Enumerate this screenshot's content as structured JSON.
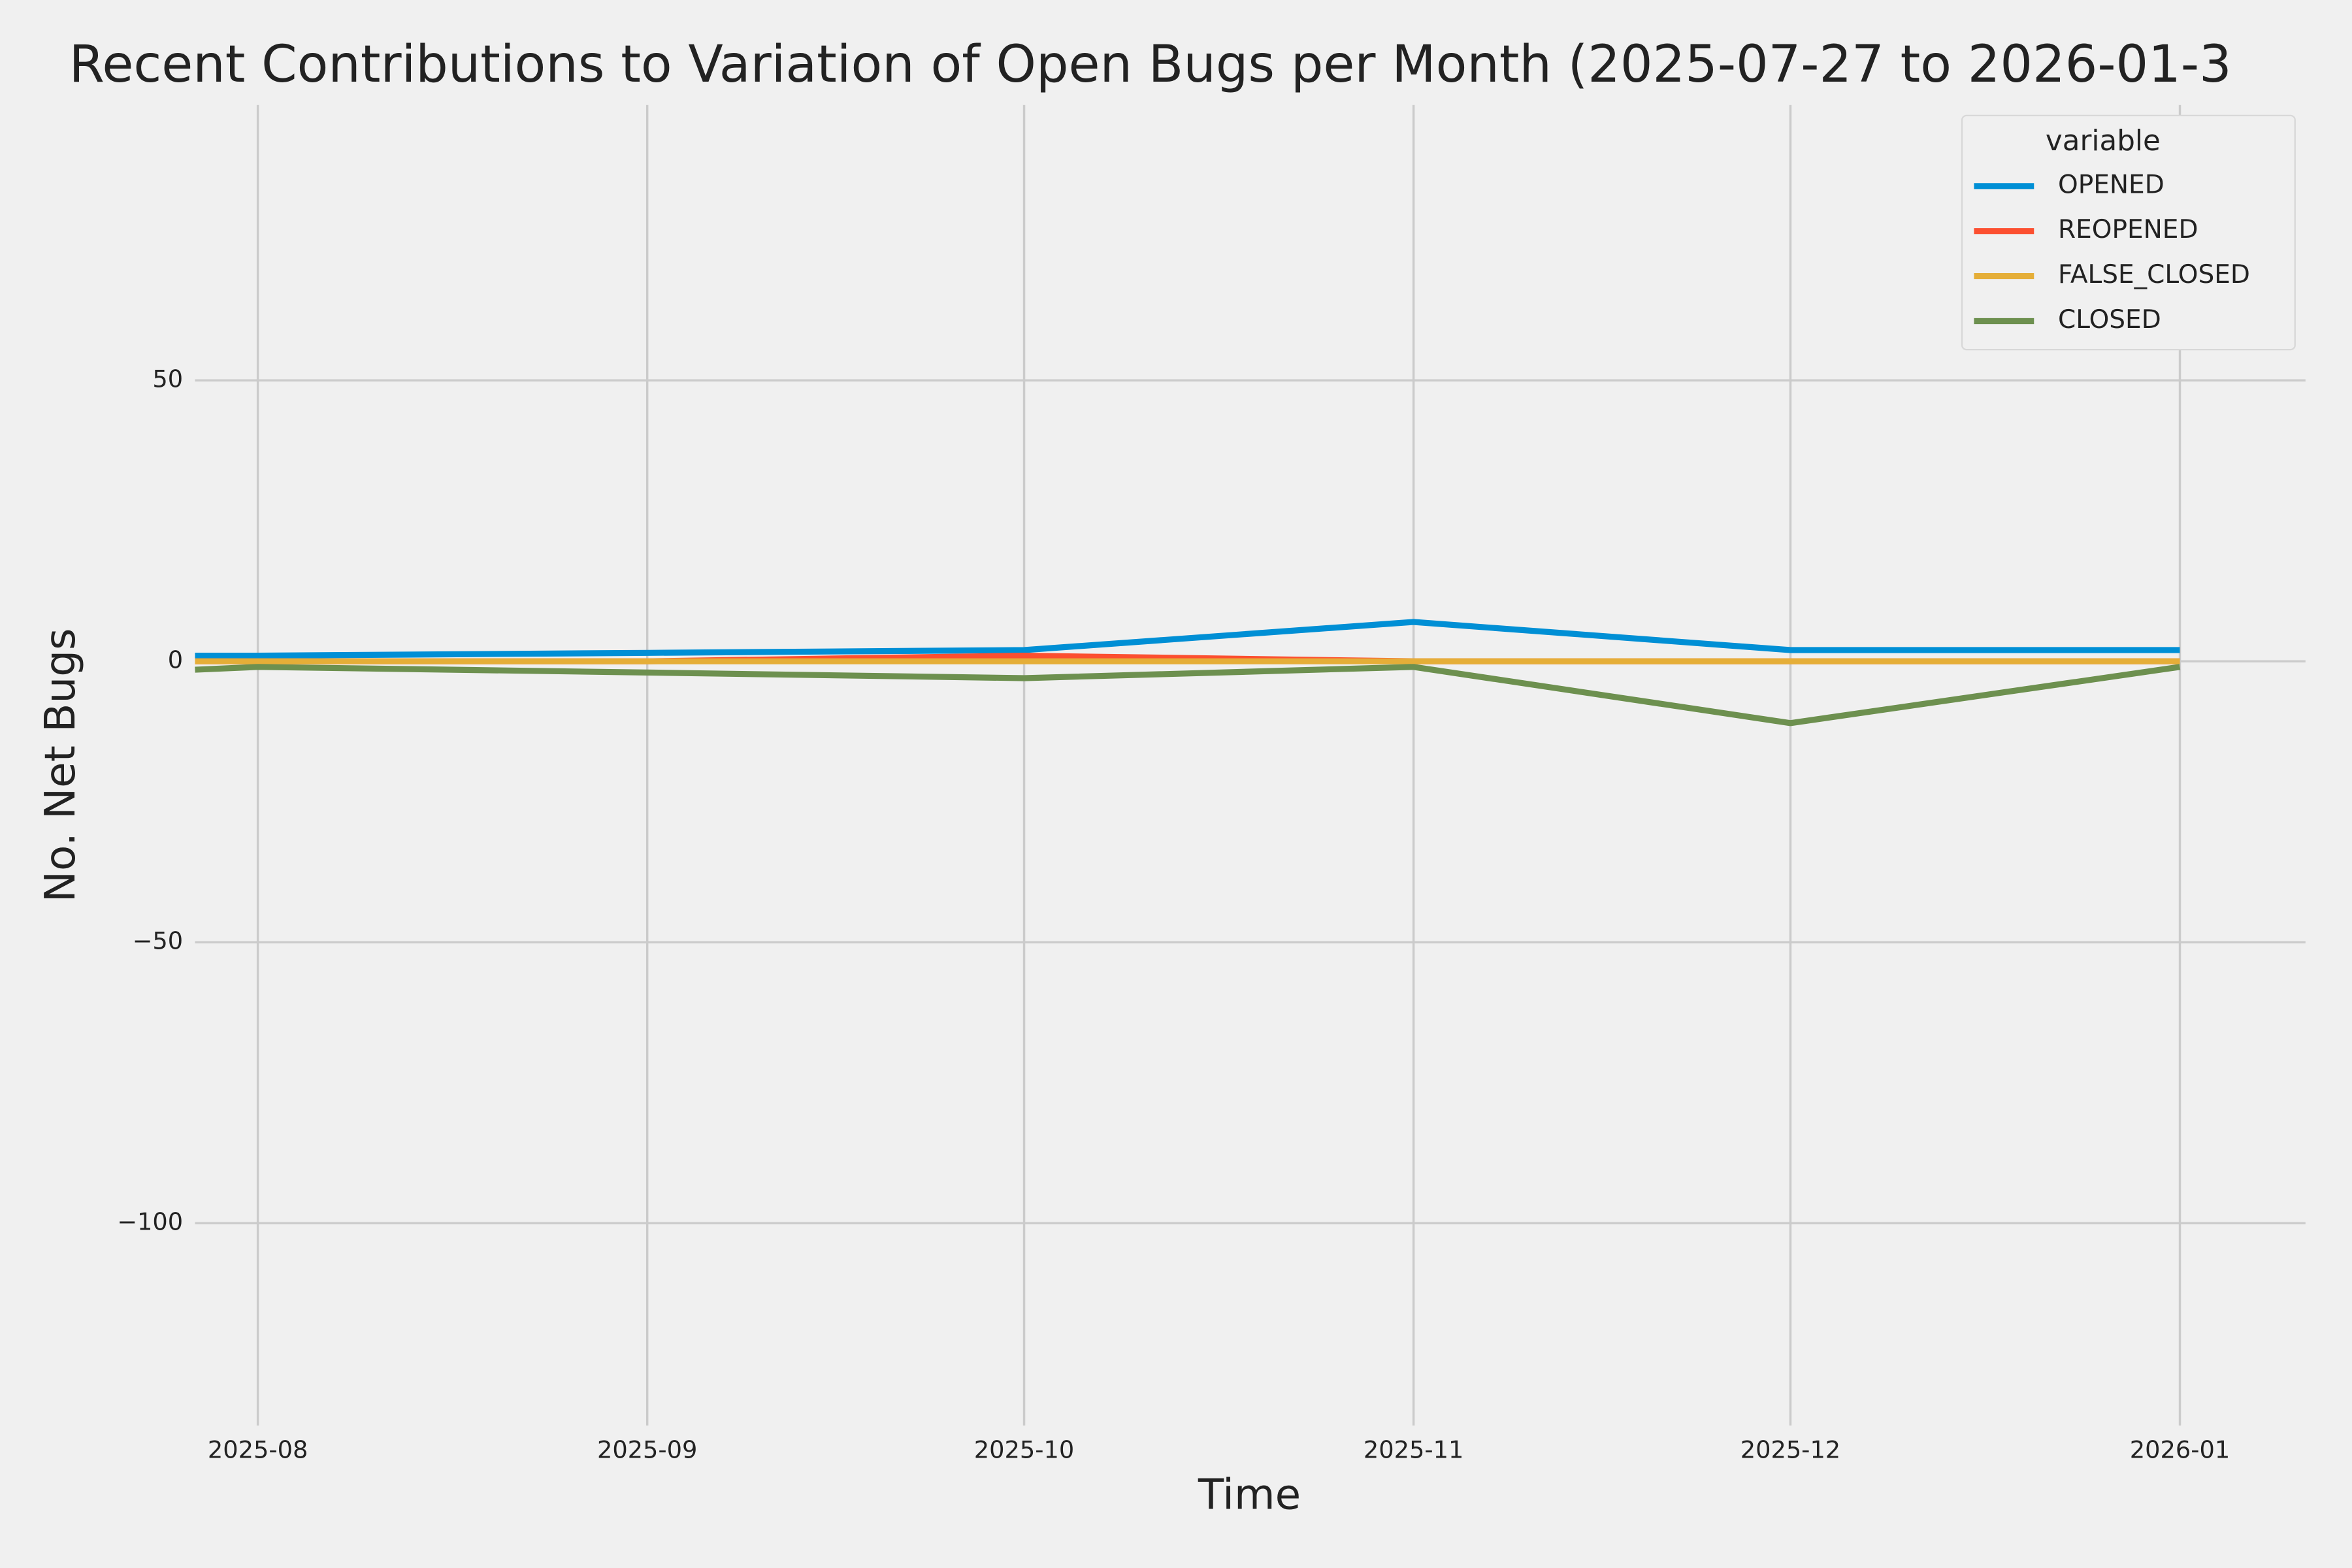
{
  "chart_data": {
    "type": "line",
    "title": "Recent Contributions to Variation of Open Bugs per Month (2025-07-27 to 2026-01-3",
    "x_label": "Time",
    "y_label": "No. Net Bugs",
    "x": [
      "2025-07-27",
      "2025-08",
      "2025-09",
      "2025-10",
      "2025-11",
      "2025-12",
      "2026-01"
    ],
    "xlim": [
      "2025-07-27",
      "2026-01-11"
    ],
    "xticks": [
      "2025-08",
      "2025-09",
      "2025-10",
      "2025-11",
      "2025-12",
      "2026-01"
    ],
    "ylim": [
      -136,
      99
    ],
    "yticks": [
      {
        "value": -100,
        "label": "−100"
      },
      {
        "value": -50,
        "label": "−50"
      },
      0,
      50
    ],
    "grid": true,
    "legend_title": "variable",
    "legend_position": "upper right",
    "series": [
      {
        "name": "OPENED",
        "color": "#008fd5",
        "values": [
          1,
          1,
          1.5,
          2,
          7,
          2,
          2
        ]
      },
      {
        "name": "REOPENED",
        "color": "#fc4f30",
        "values": [
          0,
          0,
          0,
          1,
          0,
          0,
          0
        ]
      },
      {
        "name": "FALSE_CLOSED",
        "color": "#e5ae38",
        "values": [
          0,
          0,
          0,
          0,
          0,
          0,
          0
        ]
      },
      {
        "name": "CLOSED",
        "color": "#6d904f",
        "values": [
          -1.5,
          -1,
          -2,
          -3,
          -1,
          -11,
          -1
        ]
      }
    ]
  }
}
